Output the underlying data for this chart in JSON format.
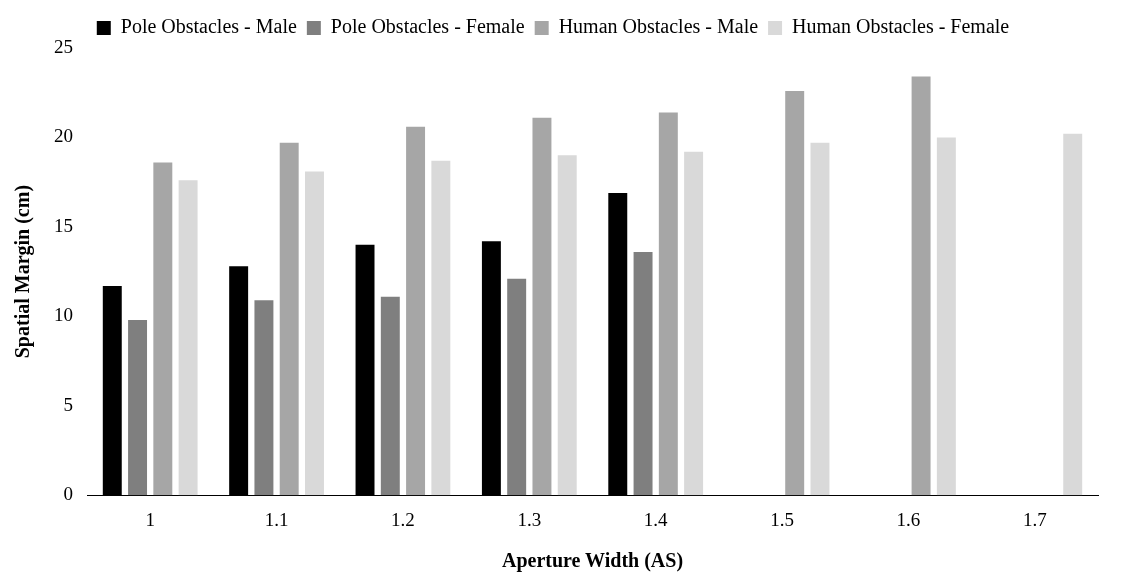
{
  "chart_data": {
    "type": "bar",
    "xlabel": "Aperture Width (AS)",
    "ylabel": "Spatial Margin (cm)",
    "categories": [
      "1",
      "1.1",
      "1.2",
      "1.3",
      "1.4",
      "1.5",
      "1.6",
      "1.7"
    ],
    "series": [
      {
        "name": "Pole Obstacles - Male",
        "color": "#000000",
        "values": [
          11.7,
          12.8,
          14.0,
          14.2,
          16.9,
          null,
          null,
          null
        ]
      },
      {
        "name": "Pole Obstacles - Female",
        "color": "#7f7f7f",
        "values": [
          9.8,
          10.9,
          11.1,
          12.1,
          13.6,
          null,
          null,
          null
        ]
      },
      {
        "name": "Human Obstacles - Male",
        "color": "#a6a6a6",
        "values": [
          18.6,
          19.7,
          20.6,
          21.1,
          21.4,
          22.6,
          23.4,
          null
        ]
      },
      {
        "name": "Human Obstacles - Female",
        "color": "#d9d9d9",
        "values": [
          17.6,
          18.1,
          18.7,
          19.0,
          19.2,
          19.7,
          20.0,
          20.2
        ]
      }
    ],
    "ylim": [
      0,
      25
    ],
    "yticks": [
      0,
      5,
      10,
      15,
      20,
      25
    ],
    "grid": false,
    "legend": "top"
  }
}
